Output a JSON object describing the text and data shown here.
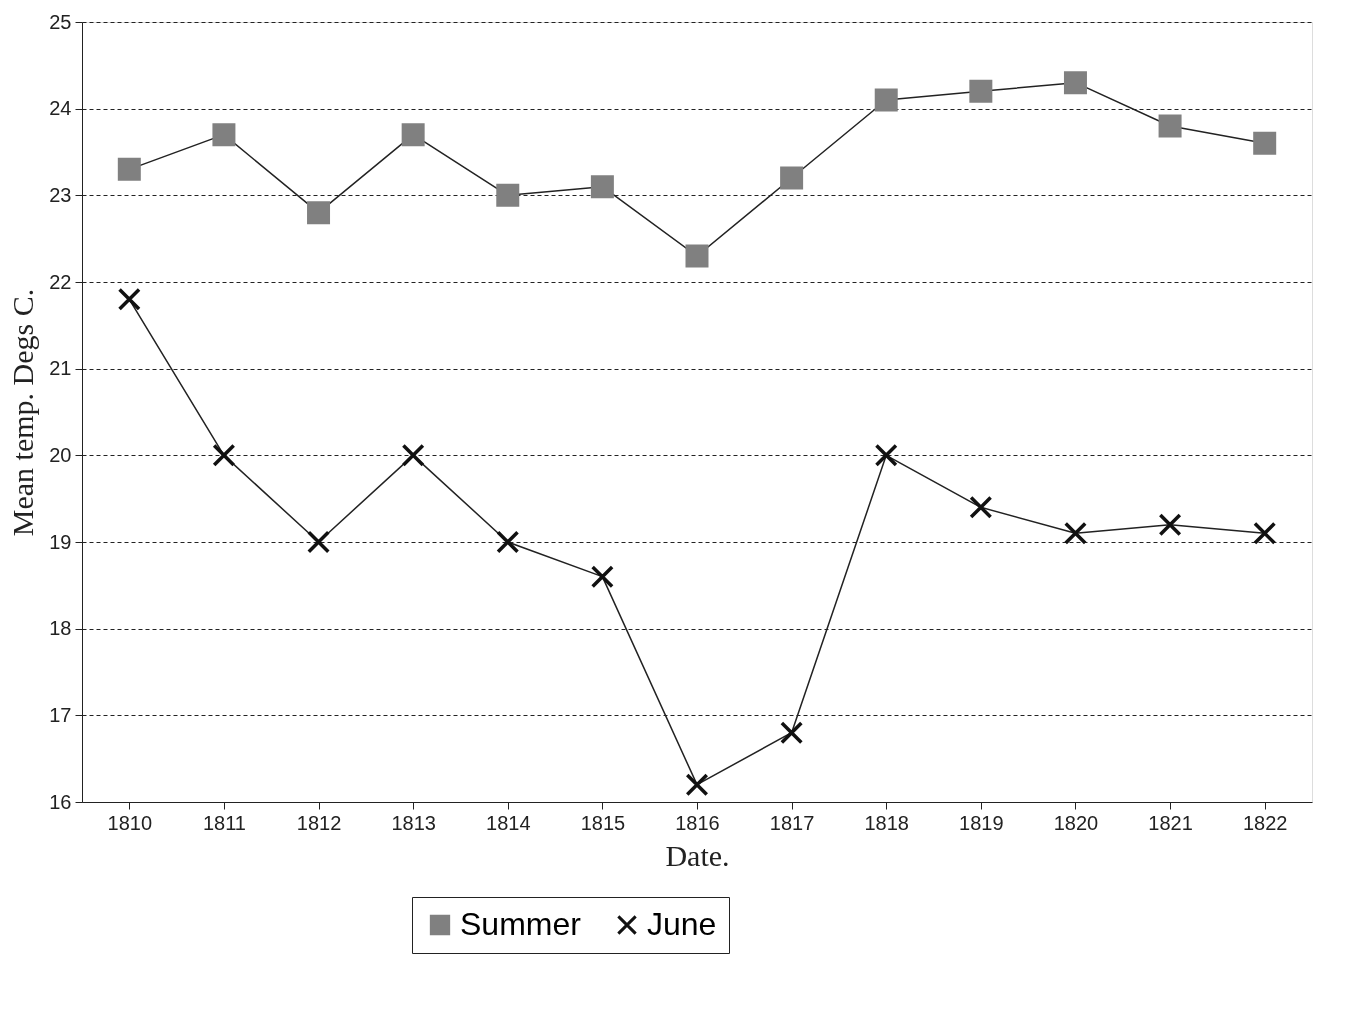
{
  "chart_data": {
    "type": "line",
    "xlabel": "Date.",
    "ylabel": "Mean temp. Degs C.",
    "categories": [
      "1810",
      "1811",
      "1812",
      "1813",
      "1814",
      "1815",
      "1816",
      "1817",
      "1818",
      "1819",
      "1820",
      "1821",
      "1822"
    ],
    "series": [
      {
        "name": "Summer",
        "color": "#808080",
        "marker": "square",
        "values": [
          23.3,
          23.7,
          22.8,
          23.7,
          23.0,
          23.1,
          22.3,
          23.2,
          24.1,
          24.2,
          24.3,
          23.8,
          23.6
        ]
      },
      {
        "name": "June",
        "color": "#111111",
        "marker": "cross",
        "values": [
          21.8,
          20.0,
          19.0,
          20.0,
          19.0,
          18.6,
          16.2,
          16.8,
          20.0,
          19.4,
          19.1,
          19.2,
          19.1
        ]
      }
    ],
    "ylim": [
      16,
      25
    ],
    "yticks": [
      16,
      17,
      18,
      19,
      20,
      21,
      22,
      23,
      24,
      25
    ],
    "grid": "y",
    "legend": "bottom",
    "line_style": "solid"
  }
}
